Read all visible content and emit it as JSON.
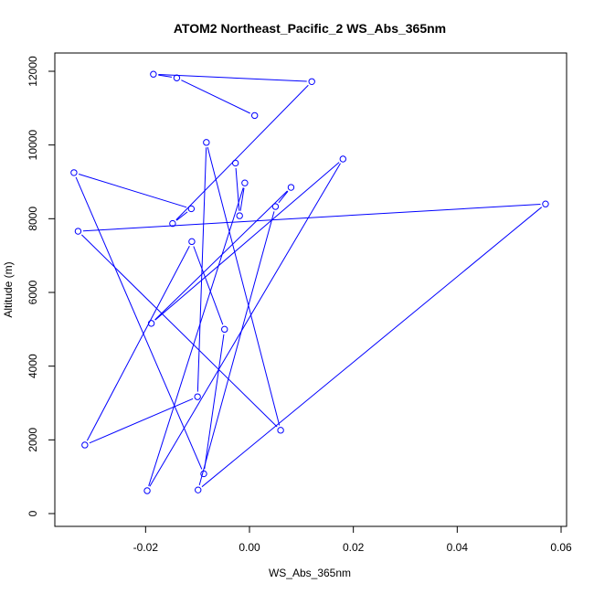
{
  "chart_data": {
    "type": "line",
    "title": "ATOM2 Northeast_Pacific_2 WS_Abs_365nm",
    "xlabel": "WS_Abs_365nm",
    "ylabel": "Altitude (m)",
    "xlim": [
      -0.036,
      0.06
    ],
    "ylim": [
      0,
      12000
    ],
    "x_ticks": [
      -0.02,
      0.0,
      0.02,
      0.04,
      0.06
    ],
    "x_tick_labels": [
      "-0.02",
      "0.00",
      "0.02",
      "0.04",
      "0.06"
    ],
    "y_ticks": [
      0,
      2000,
      4000,
      6000,
      8000,
      10000,
      12000
    ],
    "y_tick_labels": [
      "0",
      "2000",
      "4000",
      "6000",
      "8000",
      "10000",
      "12000"
    ],
    "grid": false,
    "series": [
      {
        "color": "#0000ff",
        "marker": "open-circle",
        "points": [
          {
            "x": 0.001,
            "y": 10800
          },
          {
            "x": -0.014,
            "y": 11820
          },
          {
            "x": -0.0185,
            "y": 11920
          },
          {
            "x": 0.012,
            "y": 11720
          },
          {
            "x": -0.0148,
            "y": 7870
          },
          {
            "x": -0.0112,
            "y": 8270
          },
          {
            "x": -0.0338,
            "y": 9250
          },
          {
            "x": -0.0088,
            "y": 1080
          },
          {
            "x": -0.0048,
            "y": 5000
          },
          {
            "x": -0.0111,
            "y": 7380
          },
          {
            "x": -0.0317,
            "y": 1860
          },
          {
            "x": -0.01,
            "y": 3170
          },
          {
            "x": -0.0083,
            "y": 10070
          },
          {
            "x": 0.006,
            "y": 2260
          },
          {
            "x": -0.033,
            "y": 7660
          },
          {
            "x": 0.057,
            "y": 8400
          },
          {
            "x": -0.0099,
            "y": 640
          },
          {
            "x": 0.005,
            "y": 8330
          },
          {
            "x": 0.008,
            "y": 8850
          },
          {
            "x": -0.0189,
            "y": 5160
          },
          {
            "x": 0.018,
            "y": 9620
          },
          {
            "x": -0.0197,
            "y": 620
          },
          {
            "x": -0.0009,
            "y": 8970
          },
          {
            "x": -0.0019,
            "y": 8080
          },
          {
            "x": -0.0027,
            "y": 9510
          }
        ]
      }
    ]
  }
}
